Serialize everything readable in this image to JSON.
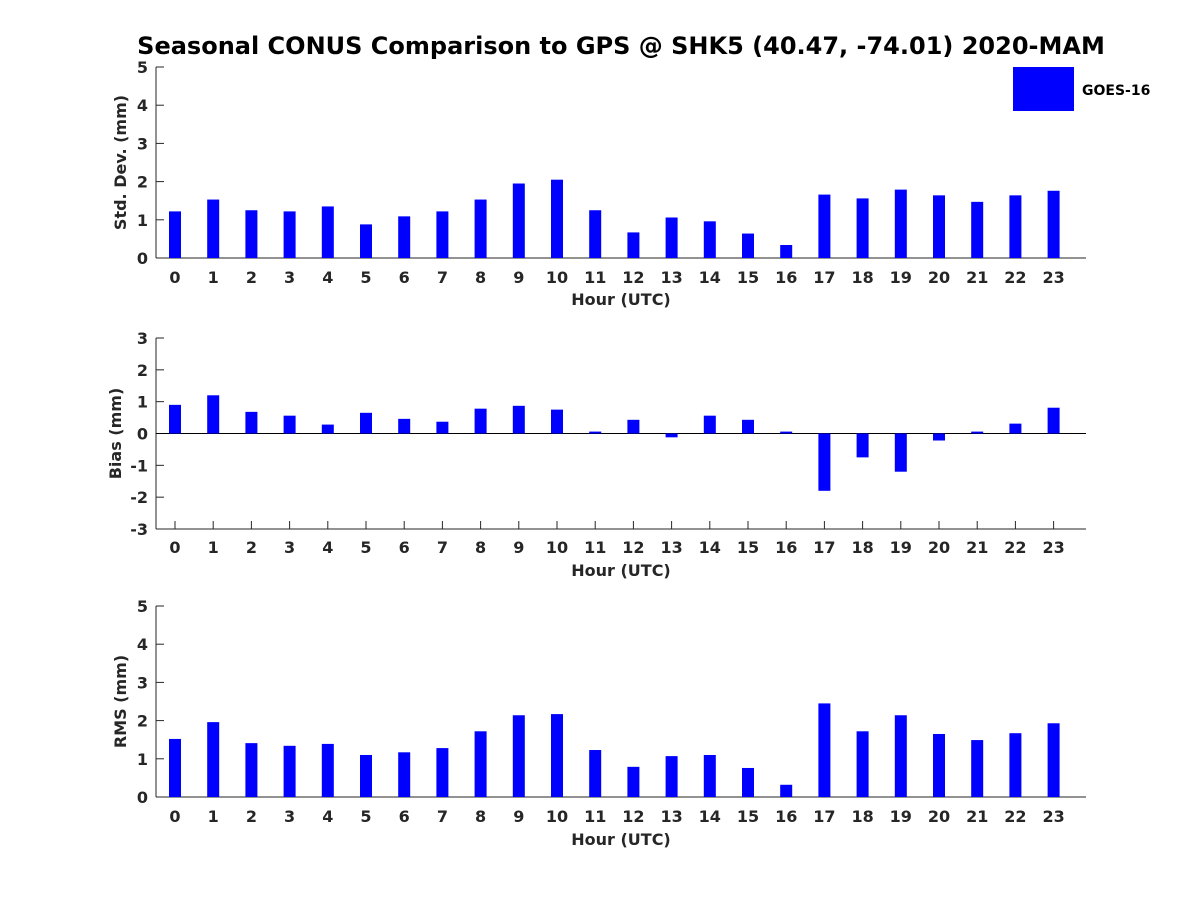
{
  "chart_data": {
    "title": "Seasonal CONUS Comparison to GPS @ SHK5 (40.47, -74.01) 2020-MAM",
    "legend": {
      "label": "GOES-16",
      "color": "#0000ff",
      "placement": "top-right"
    },
    "bar_color": "#0000ff",
    "panels": [
      {
        "id": "std",
        "type": "bar",
        "ylabel": "Std. Dev. (mm)",
        "xlabel": "Hour (UTC)",
        "ylim": [
          0,
          5
        ],
        "yticks": [
          "0",
          "1",
          "2",
          "3",
          "4",
          "5"
        ],
        "categories": [
          "0",
          "1",
          "2",
          "3",
          "4",
          "5",
          "6",
          "7",
          "8",
          "9",
          "10",
          "11",
          "12",
          "13",
          "14",
          "15",
          "16",
          "17",
          "18",
          "19",
          "20",
          "21",
          "22",
          "23"
        ],
        "values": [
          1.22,
          1.53,
          1.25,
          1.22,
          1.35,
          0.88,
          1.09,
          1.22,
          1.53,
          1.95,
          2.05,
          1.25,
          0.67,
          1.06,
          0.96,
          0.64,
          0.34,
          1.66,
          1.56,
          1.79,
          1.64,
          1.47,
          1.64,
          1.76
        ]
      },
      {
        "id": "bias",
        "type": "bar",
        "ylabel": "Bias (mm)",
        "xlabel": "Hour (UTC)",
        "ylim": [
          -3,
          3
        ],
        "yticks": [
          "-3",
          "-2",
          "-1",
          "0",
          "1",
          "2",
          "3"
        ],
        "zero_line": true,
        "categories": [
          "0",
          "1",
          "2",
          "3",
          "4",
          "5",
          "6",
          "7",
          "8",
          "9",
          "10",
          "11",
          "12",
          "13",
          "14",
          "15",
          "16",
          "17",
          "18",
          "19",
          "20",
          "21",
          "22",
          "23"
        ],
        "values": [
          0.9,
          1.2,
          0.68,
          0.56,
          0.28,
          0.65,
          0.46,
          0.37,
          0.78,
          0.87,
          0.75,
          0.06,
          0.43,
          -0.12,
          0.56,
          0.43,
          0.06,
          -1.8,
          -0.75,
          -1.2,
          -0.22,
          0.06,
          0.31,
          0.81
        ]
      },
      {
        "id": "rms",
        "type": "bar",
        "ylabel": "RMS (mm)",
        "xlabel": "Hour (UTC)",
        "ylim": [
          0,
          5
        ],
        "yticks": [
          "0",
          "1",
          "2",
          "3",
          "4",
          "5"
        ],
        "categories": [
          "0",
          "1",
          "2",
          "3",
          "4",
          "5",
          "6",
          "7",
          "8",
          "9",
          "10",
          "11",
          "12",
          "13",
          "14",
          "15",
          "16",
          "17",
          "18",
          "19",
          "20",
          "21",
          "22",
          "23"
        ],
        "values": [
          1.52,
          1.96,
          1.41,
          1.34,
          1.39,
          1.1,
          1.17,
          1.28,
          1.72,
          2.14,
          2.17,
          1.23,
          0.79,
          1.07,
          1.1,
          0.76,
          0.32,
          2.45,
          1.72,
          2.14,
          1.65,
          1.49,
          1.67,
          1.93
        ]
      }
    ]
  }
}
